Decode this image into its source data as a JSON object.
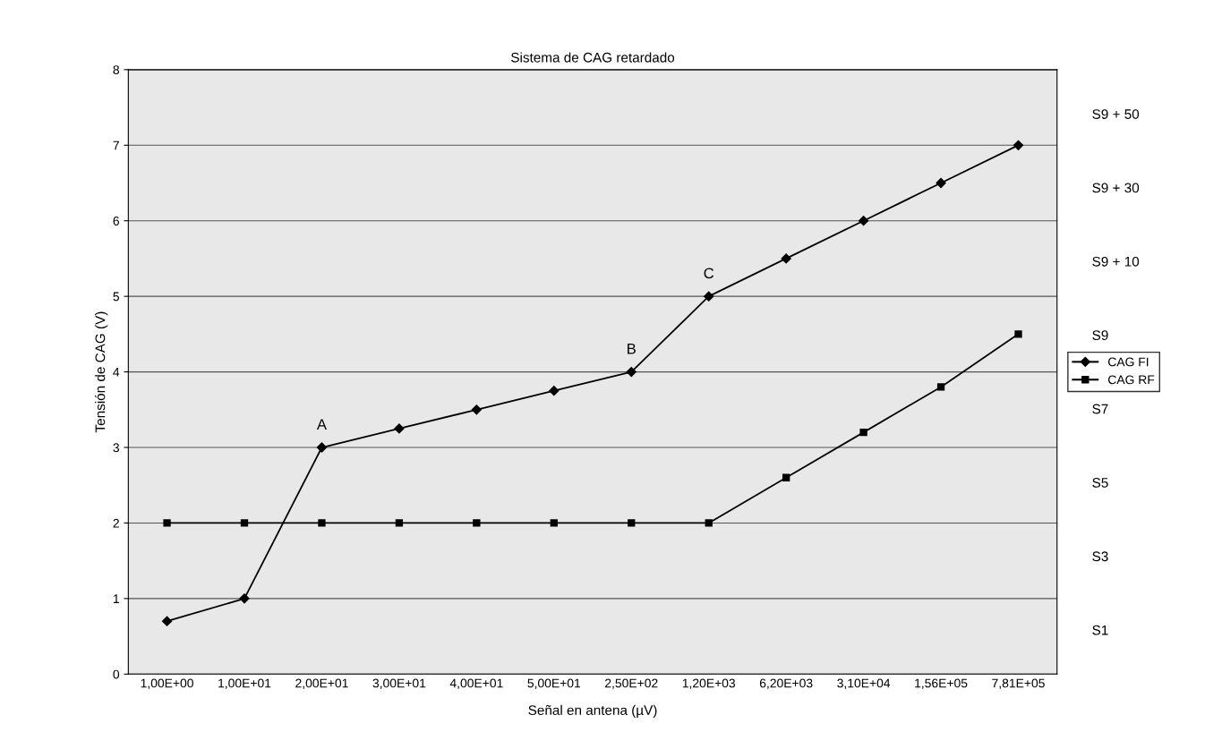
{
  "chart_data": {
    "type": "line",
    "title": "Sistema de CAG retardado",
    "xlabel": "Señal en antena (µV)",
    "ylabel": "Tensión de CAG (V)",
    "categories": [
      "1,00E+00",
      "1,00E+01",
      "2,00E+01",
      "3,00E+01",
      "4,00E+01",
      "5,00E+01",
      "2,50E+02",
      "1,20E+03",
      "6,20E+03",
      "3,10E+04",
      "1,56E+05",
      "7,81E+05"
    ],
    "series": [
      {
        "name": "CAG FI",
        "color": "#000000",
        "marker": "diamond",
        "values": [
          0.7,
          1,
          3,
          3.25,
          3.5,
          3.75,
          4,
          5,
          5.5,
          6,
          6.5,
          7
        ]
      },
      {
        "name": "CAG RF",
        "color": "#000000",
        "marker": "square",
        "values": [
          2,
          2,
          2,
          2,
          2,
          2,
          2,
          2,
          2.6,
          3.2,
          3.8,
          4.5
        ]
      }
    ],
    "ylim": [
      0,
      8
    ],
    "yticks": [
      0,
      1,
      2,
      3,
      4,
      5,
      6,
      7,
      8
    ],
    "y2_categories": [
      "S9 + 50",
      "S9 + 30",
      "S9 + 10",
      "S9",
      "S7",
      "S5",
      "S3",
      "S1"
    ],
    "annotations": [
      {
        "text": "A",
        "x": "2,00E+01",
        "y": 3
      },
      {
        "text": "B",
        "x": "2,50E+02",
        "y": 4
      },
      {
        "text": "C",
        "x": "1,20E+03",
        "y": 5
      }
    ],
    "grid": true,
    "legend": "right",
    "line_style": "solid"
  }
}
